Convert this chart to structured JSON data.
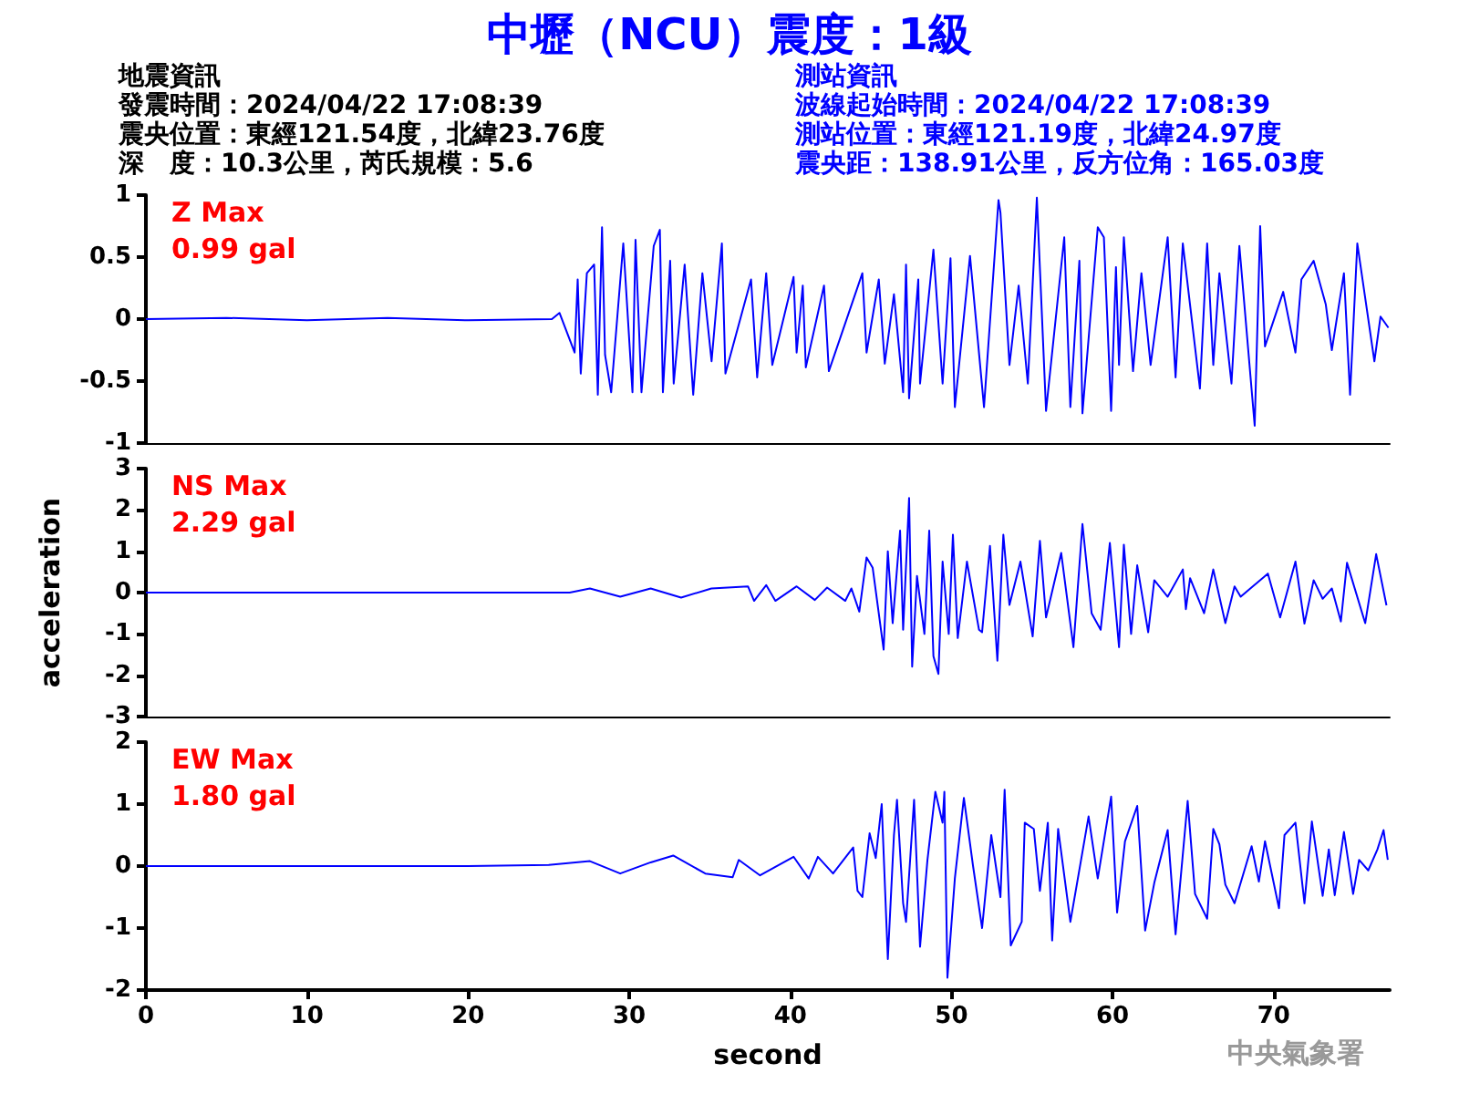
{
  "chart_data": [
    {
      "type": "line",
      "title": "中壢（NCU）震度：1級",
      "annotations": [
        "Z Max",
        "0.99 gal",
        "地震資訊",
        "發震時間：2024/04/22 17:08:39",
        "震央位置：東經121.54度，北緯23.76度",
        "深　度：10.3公里，芮氏規模：5.6",
        "測站資訊",
        "波線起始時間：2024/04/22 17:08:39",
        "測站位置：東經121.19度，北緯24.97度",
        "震央距：138.91公里，反方位角：165.03度"
      ],
      "xlim": [
        0,
        77.2
      ],
      "xticks": [
        0,
        10,
        20,
        30,
        40,
        50,
        60,
        70
      ],
      "ylim": [
        -1,
        1
      ],
      "yticks": [
        -1,
        -0.5,
        0,
        0.5,
        1
      ],
      "tick_labels": "y",
      "grid": false,
      "marker": "none",
      "line_style": "solid",
      "series": [
        {
          "color": "#0000ff",
          "x": [
            0,
            5,
            10,
            15,
            20,
            25.2,
            25.67,
            26.61,
            26.8,
            26.99,
            27.37,
            27.82,
            28.05,
            28.31,
            28.5,
            28.88,
            29.63,
            30.2,
            30.39,
            30.76,
            31.52,
            31.9,
            32.09,
            32.54,
            32.76,
            33.44,
            33.97,
            34.54,
            35.11,
            35.75,
            35.97,
            37.56,
            37.94,
            38.5,
            38.88,
            40.2,
            40.39,
            40.77,
            40.96,
            42.09,
            42.39,
            44.47,
            44.73,
            45.49,
            45.86,
            46.43,
            47,
            47.18,
            47.37,
            47.94,
            48.05,
            48.88,
            49.45,
            49.94,
            50.21,
            51.15,
            52.02,
            52.92,
            53.04,
            53.6,
            54.17,
            54.74,
            55.3,
            55.87,
            57,
            57.38,
            57.94,
            58.13,
            59.08,
            59.46,
            59.91,
            60.21,
            60.4,
            60.7,
            61.27,
            61.79,
            62.36,
            63.42,
            63.91,
            64.36,
            65.42,
            65.87,
            66.25,
            66.63,
            67.38,
            67.87,
            68.82,
            69.16,
            69.46,
            70.59,
            71.35,
            71.72,
            72.48,
            73.23,
            73.61,
            74.36,
            74.74,
            75.19,
            75.68,
            76.25,
            76.63,
            77.12
          ],
          "values": [
            0,
            0.01,
            -0.01,
            0.01,
            -0.01,
            0,
            0.05,
            -0.27,
            0.32,
            -0.44,
            0.37,
            0.44,
            -0.61,
            0.74,
            -0.29,
            -0.59,
            0.61,
            -0.59,
            0.64,
            -0.59,
            0.59,
            0.72,
            -0.59,
            0.47,
            -0.52,
            0.44,
            -0.61,
            0.37,
            -0.34,
            0.61,
            -0.44,
            0.32,
            -0.47,
            0.37,
            -0.37,
            0.34,
            -0.27,
            0.27,
            -0.39,
            0.27,
            -0.42,
            0.37,
            -0.27,
            0.32,
            -0.36,
            0.2,
            -0.59,
            0.44,
            -0.64,
            0.32,
            -0.52,
            0.56,
            -0.52,
            0.49,
            -0.71,
            0.51,
            -0.71,
            0.96,
            0.86,
            -0.37,
            0.27,
            -0.52,
            0.98,
            -0.74,
            0.66,
            -0.71,
            0.47,
            -0.76,
            0.74,
            0.66,
            -0.74,
            0.42,
            -0.37,
            0.66,
            -0.42,
            0.37,
            -0.37,
            0.66,
            -0.47,
            0.61,
            -0.56,
            0.61,
            -0.37,
            0.37,
            -0.52,
            0.59,
            -0.86,
            0.75,
            -0.22,
            0.22,
            -0.27,
            0.32,
            0.47,
            0.12,
            -0.25,
            0.37,
            -0.61,
            0.61,
            0.17,
            -0.34,
            0.02,
            -0.07
          ]
        }
      ]
    },
    {
      "type": "line",
      "ylabel": "acceleration",
      "annotations": [
        "NS Max",
        "2.29 gal"
      ],
      "xlim": [
        0,
        77.2
      ],
      "xticks": [
        0,
        10,
        20,
        30,
        40,
        50,
        60,
        70
      ],
      "ylim": [
        -3,
        3
      ],
      "yticks": [
        -3,
        -2,
        -1,
        0,
        1,
        2,
        3
      ],
      "tick_labels": "y",
      "grid": false,
      "marker": "none",
      "line_style": "solid",
      "series": [
        {
          "color": "#0000ff",
          "x": [
            0,
            10,
            20,
            26.3,
            27.56,
            29.44,
            31.33,
            33.22,
            35.1,
            37.37,
            37.75,
            38.5,
            39.07,
            40.39,
            41.52,
            42.28,
            43.41,
            43.79,
            44.28,
            44.73,
            45.11,
            45.79,
            46.05,
            46.35,
            46.81,
            47,
            47.37,
            47.56,
            47.86,
            48.32,
            48.62,
            48.88,
            49.19,
            49.45,
            49.83,
            50.09,
            50.39,
            50.96,
            51.71,
            51.9,
            52.39,
            52.85,
            53.22,
            53.6,
            54.28,
            55.04,
            55.49,
            55.87,
            56.81,
            57.57,
            58.13,
            58.7,
            59.26,
            59.83,
            60.4,
            60.7,
            61.15,
            61.53,
            62.21,
            62.59,
            63.42,
            64.36,
            64.55,
            64.81,
            65.68,
            66.25,
            67,
            67.57,
            67.95,
            68.7,
            69.64,
            70.4,
            71.35,
            71.91,
            72.48,
            73.04,
            73.61,
            74.17,
            74.55,
            75.68,
            76.36,
            77
          ],
          "values": [
            0,
            0,
            0,
            0,
            0.1,
            -0.1,
            0.1,
            -0.12,
            0.1,
            0.15,
            -0.2,
            0.18,
            -0.2,
            0.15,
            -0.18,
            0.12,
            -0.2,
            0.1,
            -0.46,
            0.85,
            0.6,
            -1.38,
            1,
            -0.74,
            1.5,
            -0.9,
            2.29,
            -1.79,
            0.4,
            -1,
            1.5,
            -1.54,
            -1.97,
            0.75,
            -1,
            1.4,
            -1.1,
            0.75,
            -0.9,
            -0.96,
            1.13,
            -1.65,
            1.4,
            -0.3,
            0.75,
            -1.06,
            1.25,
            -0.6,
            0.96,
            -1.32,
            1.66,
            -0.5,
            -0.9,
            1.2,
            -1.32,
            1.16,
            -1,
            0.66,
            -0.96,
            0.3,
            -0.1,
            0.56,
            -0.4,
            0.35,
            -0.5,
            0.56,
            -0.74,
            0.15,
            -0.1,
            0.15,
            0.46,
            -0.6,
            0.75,
            -0.75,
            0.3,
            -0.15,
            0.1,
            -0.7,
            0.72,
            -0.74,
            0.93,
            -0.31
          ]
        }
      ]
    },
    {
      "type": "line",
      "xlabel": "second",
      "annotations": [
        "EW Max",
        "1.80 gal",
        "中央氣象署"
      ],
      "xlim": [
        0,
        77.2
      ],
      "xticks": [
        0,
        10,
        20,
        30,
        40,
        50,
        60,
        70
      ],
      "ylim": [
        -2,
        2
      ],
      "yticks": [
        -2,
        -1,
        0,
        1,
        2
      ],
      "grid": false,
      "marker": "none",
      "line_style": "solid",
      "series": [
        {
          "color": "#0000ff",
          "x": [
            0,
            10,
            20,
            25,
            27.56,
            29.44,
            31.33,
            32.73,
            34.72,
            36.42,
            36.8,
            38.12,
            40.2,
            41.14,
            41.71,
            42.65,
            43.6,
            43.9,
            44.17,
            44.47,
            44.92,
            45.3,
            45.67,
            46.05,
            46.43,
            46.62,
            47,
            47.18,
            47.68,
            48.05,
            48.51,
            49,
            49.45,
            49.56,
            49.75,
            50.21,
            50.77,
            51.34,
            51.9,
            52.47,
            53.04,
            53.3,
            53.68,
            54.36,
            54.55,
            55.11,
            55.49,
            55.98,
            56.25,
            56.62,
            57.38,
            58.51,
            59.08,
            59.91,
            60.28,
            60.77,
            61.53,
            62.02,
            62.59,
            63.42,
            63.91,
            64.66,
            65.12,
            65.87,
            66.25,
            66.63,
            67,
            67.57,
            68.63,
            69.08,
            69.46,
            70.33,
            70.67,
            71.35,
            71.91,
            72.37,
            73.04,
            73.42,
            73.79,
            74.36,
            74.93,
            75.3,
            75.87,
            76.44,
            76.82,
            77.08
          ],
          "values": [
            0,
            0,
            0,
            0.02,
            0.08,
            -0.12,
            0.06,
            0.17,
            -0.12,
            -0.18,
            0.1,
            -0.15,
            0.15,
            -0.2,
            0.15,
            -0.12,
            0.2,
            0.3,
            -0.4,
            -0.5,
            0.53,
            0.13,
            1,
            -1.5,
            0.5,
            1.07,
            -0.6,
            -0.9,
            1.07,
            -1.3,
            0.1,
            1.2,
            0.7,
            1.2,
            -1.8,
            -0.2,
            1.1,
            0,
            -1,
            0.5,
            -0.5,
            1.23,
            -1.28,
            -0.9,
            0.7,
            0.6,
            -0.4,
            0.7,
            -1.2,
            0.6,
            -0.9,
            0.8,
            -0.2,
            1.12,
            -0.75,
            0.4,
            0.97,
            -1.04,
            -0.27,
            0.58,
            -1.1,
            1.05,
            -0.45,
            -0.85,
            0.6,
            0.35,
            -0.3,
            -0.6,
            0.32,
            -0.25,
            0.4,
            -0.68,
            0.5,
            0.7,
            -0.6,
            0.72,
            -0.48,
            0.27,
            -0.47,
            0.55,
            -0.45,
            0.1,
            -0.07,
            0.27,
            0.58,
            0.1
          ]
        }
      ]
    }
  ]
}
